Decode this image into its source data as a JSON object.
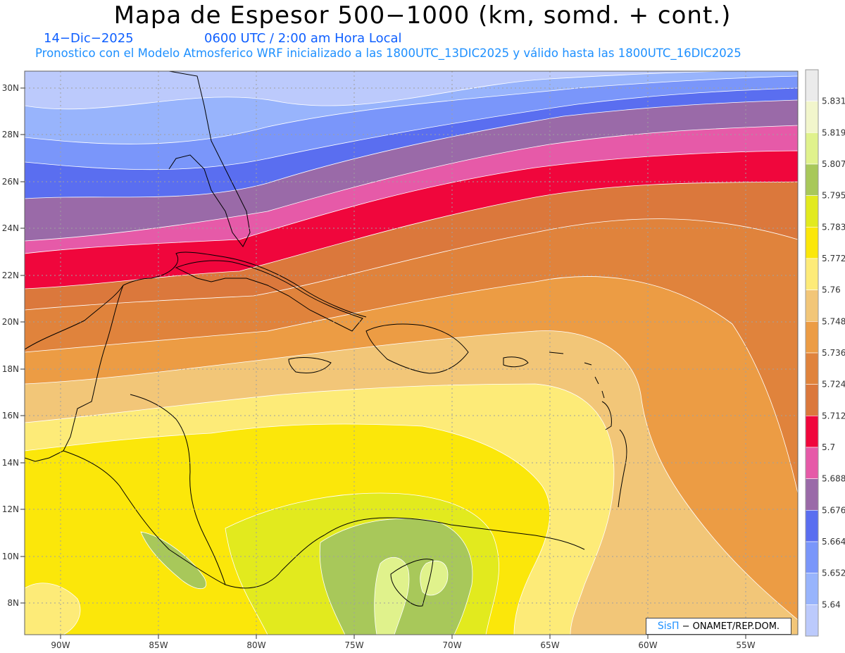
{
  "header": {
    "title": "Mapa de Espesor 500−1000 (km, somd. + cont.)",
    "date": "14−Dic−2025",
    "time": "0600 UTC / 2:00 am Hora Local",
    "description": "Pronostico con el Modelo Atmosferico WRF inicializado a las 1800UTC_13DIC2025 y válido hasta las  1800UTC_16DIC2025"
  },
  "axes": {
    "lat_labels": [
      "30N",
      "28N",
      "26N",
      "24N",
      "22N",
      "20N",
      "18N",
      "16N",
      "14N",
      "12N",
      "10N",
      "8N"
    ],
    "lon_labels": [
      "90W",
      "85W",
      "80W",
      "75W",
      "70W",
      "65W",
      "60W",
      "55W"
    ]
  },
  "colorbar": {
    "levels": [
      "5.831",
      "5.819",
      "5.807",
      "5.795",
      "5.783",
      "5.772",
      "5.76",
      "5.748",
      "5.736",
      "5.724",
      "5.712",
      "5.7",
      "5.688",
      "5.676",
      "5.664",
      "5.652",
      "5.64"
    ],
    "colors": [
      "#ebebeb",
      "#f2f6cc",
      "#e0f28c",
      "#a8c85a",
      "#e2ea1e",
      "#fbe70a",
      "#fdeb78",
      "#f2c678",
      "#ec9c44",
      "#e0833c",
      "#db783c",
      "#f0063c",
      "#e65aa8",
      "#9a6aa8",
      "#5a6ef0",
      "#7a96fa",
      "#98b4fc",
      "#bccafc"
    ]
  },
  "credit": {
    "brand": "SisΠ",
    "text": "− ONAMET/REP.DOM."
  }
}
